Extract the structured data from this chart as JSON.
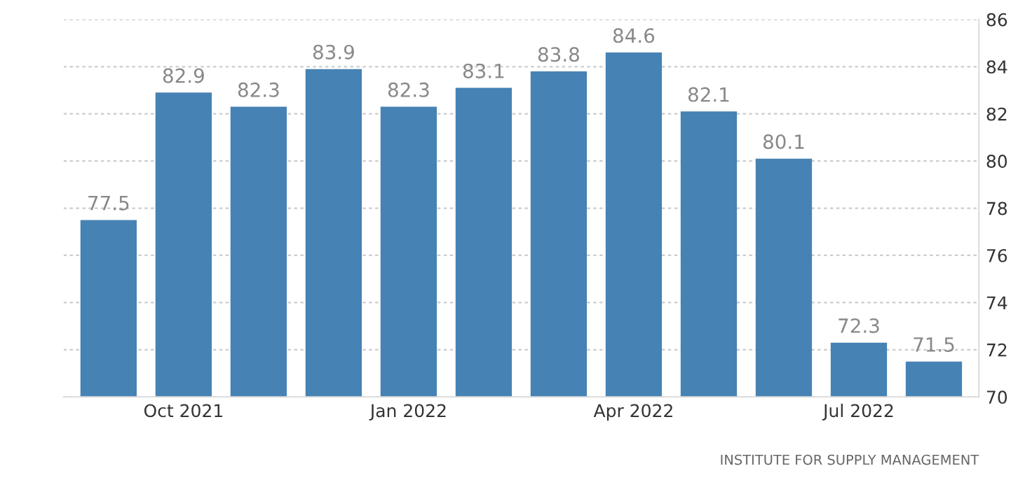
{
  "chart_data": {
    "type": "bar",
    "categories": [
      null,
      "Oct 2021",
      null,
      null,
      "Jan 2022",
      null,
      null,
      "Apr 2022",
      null,
      null,
      "Jul 2022",
      null
    ],
    "values": [
      77.5,
      82.9,
      82.3,
      83.9,
      82.3,
      83.1,
      83.8,
      84.6,
      82.1,
      80.1,
      72.3,
      71.5
    ],
    "color": "#4682b4",
    "ylim": [
      70,
      86
    ],
    "yticks": [
      70,
      72,
      74,
      76,
      78,
      80,
      82,
      84,
      86
    ],
    "grid": "y",
    "data_labels": true,
    "annotations": [
      "INSTITUTE FOR SUPPLY MANAGEMENT"
    ]
  }
}
